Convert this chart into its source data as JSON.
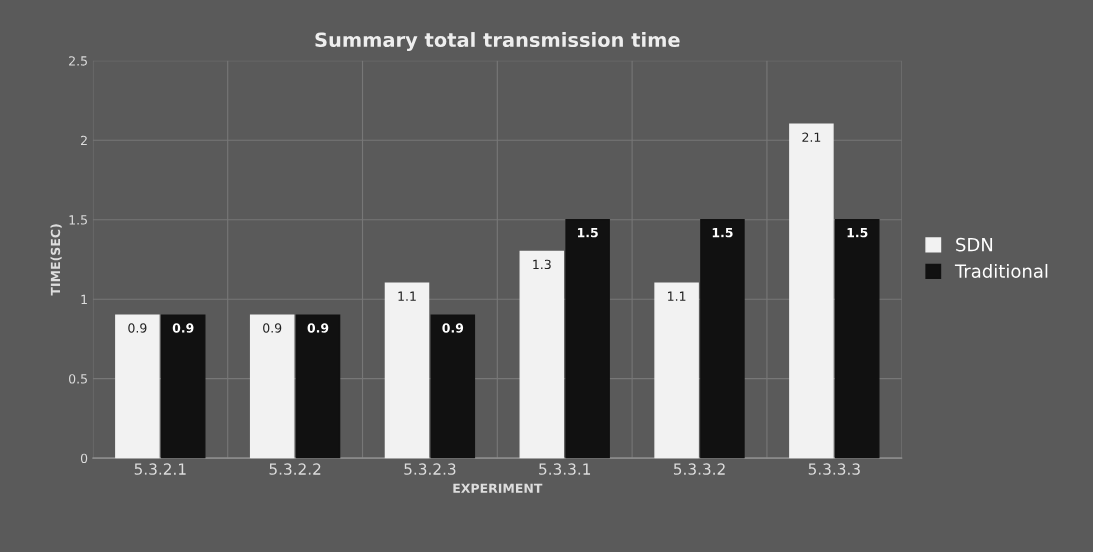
{
  "chart_data": {
    "type": "bar",
    "title": "Summary total transmission time",
    "xlabel": "EXPERIMENT",
    "ylabel": "TIME(SEC)",
    "categories": [
      "5.3.2.1",
      "5.3.2.2",
      "5.3.2.3",
      "5.3.3.1",
      "5.3.3.2",
      "5.3.3.3"
    ],
    "series": [
      {
        "name": "SDN",
        "color": "#f2f2f2",
        "values": [
          0.9,
          0.9,
          1.1,
          1.3,
          1.1,
          2.1
        ]
      },
      {
        "name": "Traditional",
        "color": "#111111",
        "values": [
          0.9,
          0.9,
          0.9,
          1.5,
          1.5,
          1.5
        ]
      }
    ],
    "ylim": [
      0,
      2.5
    ],
    "yticks": [
      0,
      0.5,
      1,
      1.5,
      2,
      2.5
    ],
    "grid": true,
    "legend": "right",
    "data_labels": true
  }
}
